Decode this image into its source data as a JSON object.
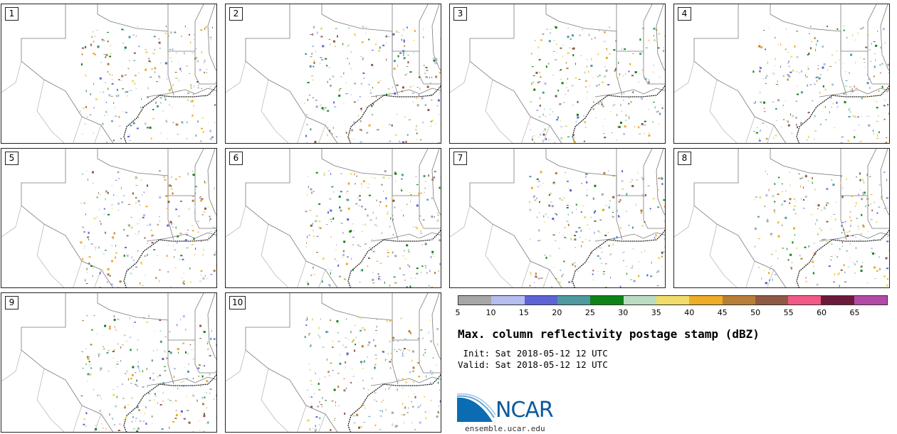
{
  "members": [
    {
      "label": "1"
    },
    {
      "label": "2"
    },
    {
      "label": "3"
    },
    {
      "label": "4"
    },
    {
      "label": "5"
    },
    {
      "label": "6"
    },
    {
      "label": "7"
    },
    {
      "label": "8"
    },
    {
      "label": "9"
    },
    {
      "label": "10"
    }
  ],
  "colorbar": {
    "colors": [
      "#a6a6a6",
      "#b4bded",
      "#5e63d6",
      "#4f9aa1",
      "#0f8317",
      "#bcdcc1",
      "#f0dc6a",
      "#eeac27",
      "#b77e38",
      "#8e5a44",
      "#f15a86",
      "#6c1a3b",
      "#b24ba6"
    ],
    "ticks": [
      "5",
      "10",
      "15",
      "20",
      "25",
      "30",
      "35",
      "40",
      "45",
      "50",
      "55",
      "60",
      "65"
    ]
  },
  "title": "Max. column reflectivity postage stamp (dBZ)",
  "init": " Init: Sat 2018-05-12 12 UTC",
  "valid": "Valid: Sat 2018-05-12 12 UTC",
  "logo": {
    "text": "NCAR",
    "site": "ensemble.ucar.edu"
  }
}
